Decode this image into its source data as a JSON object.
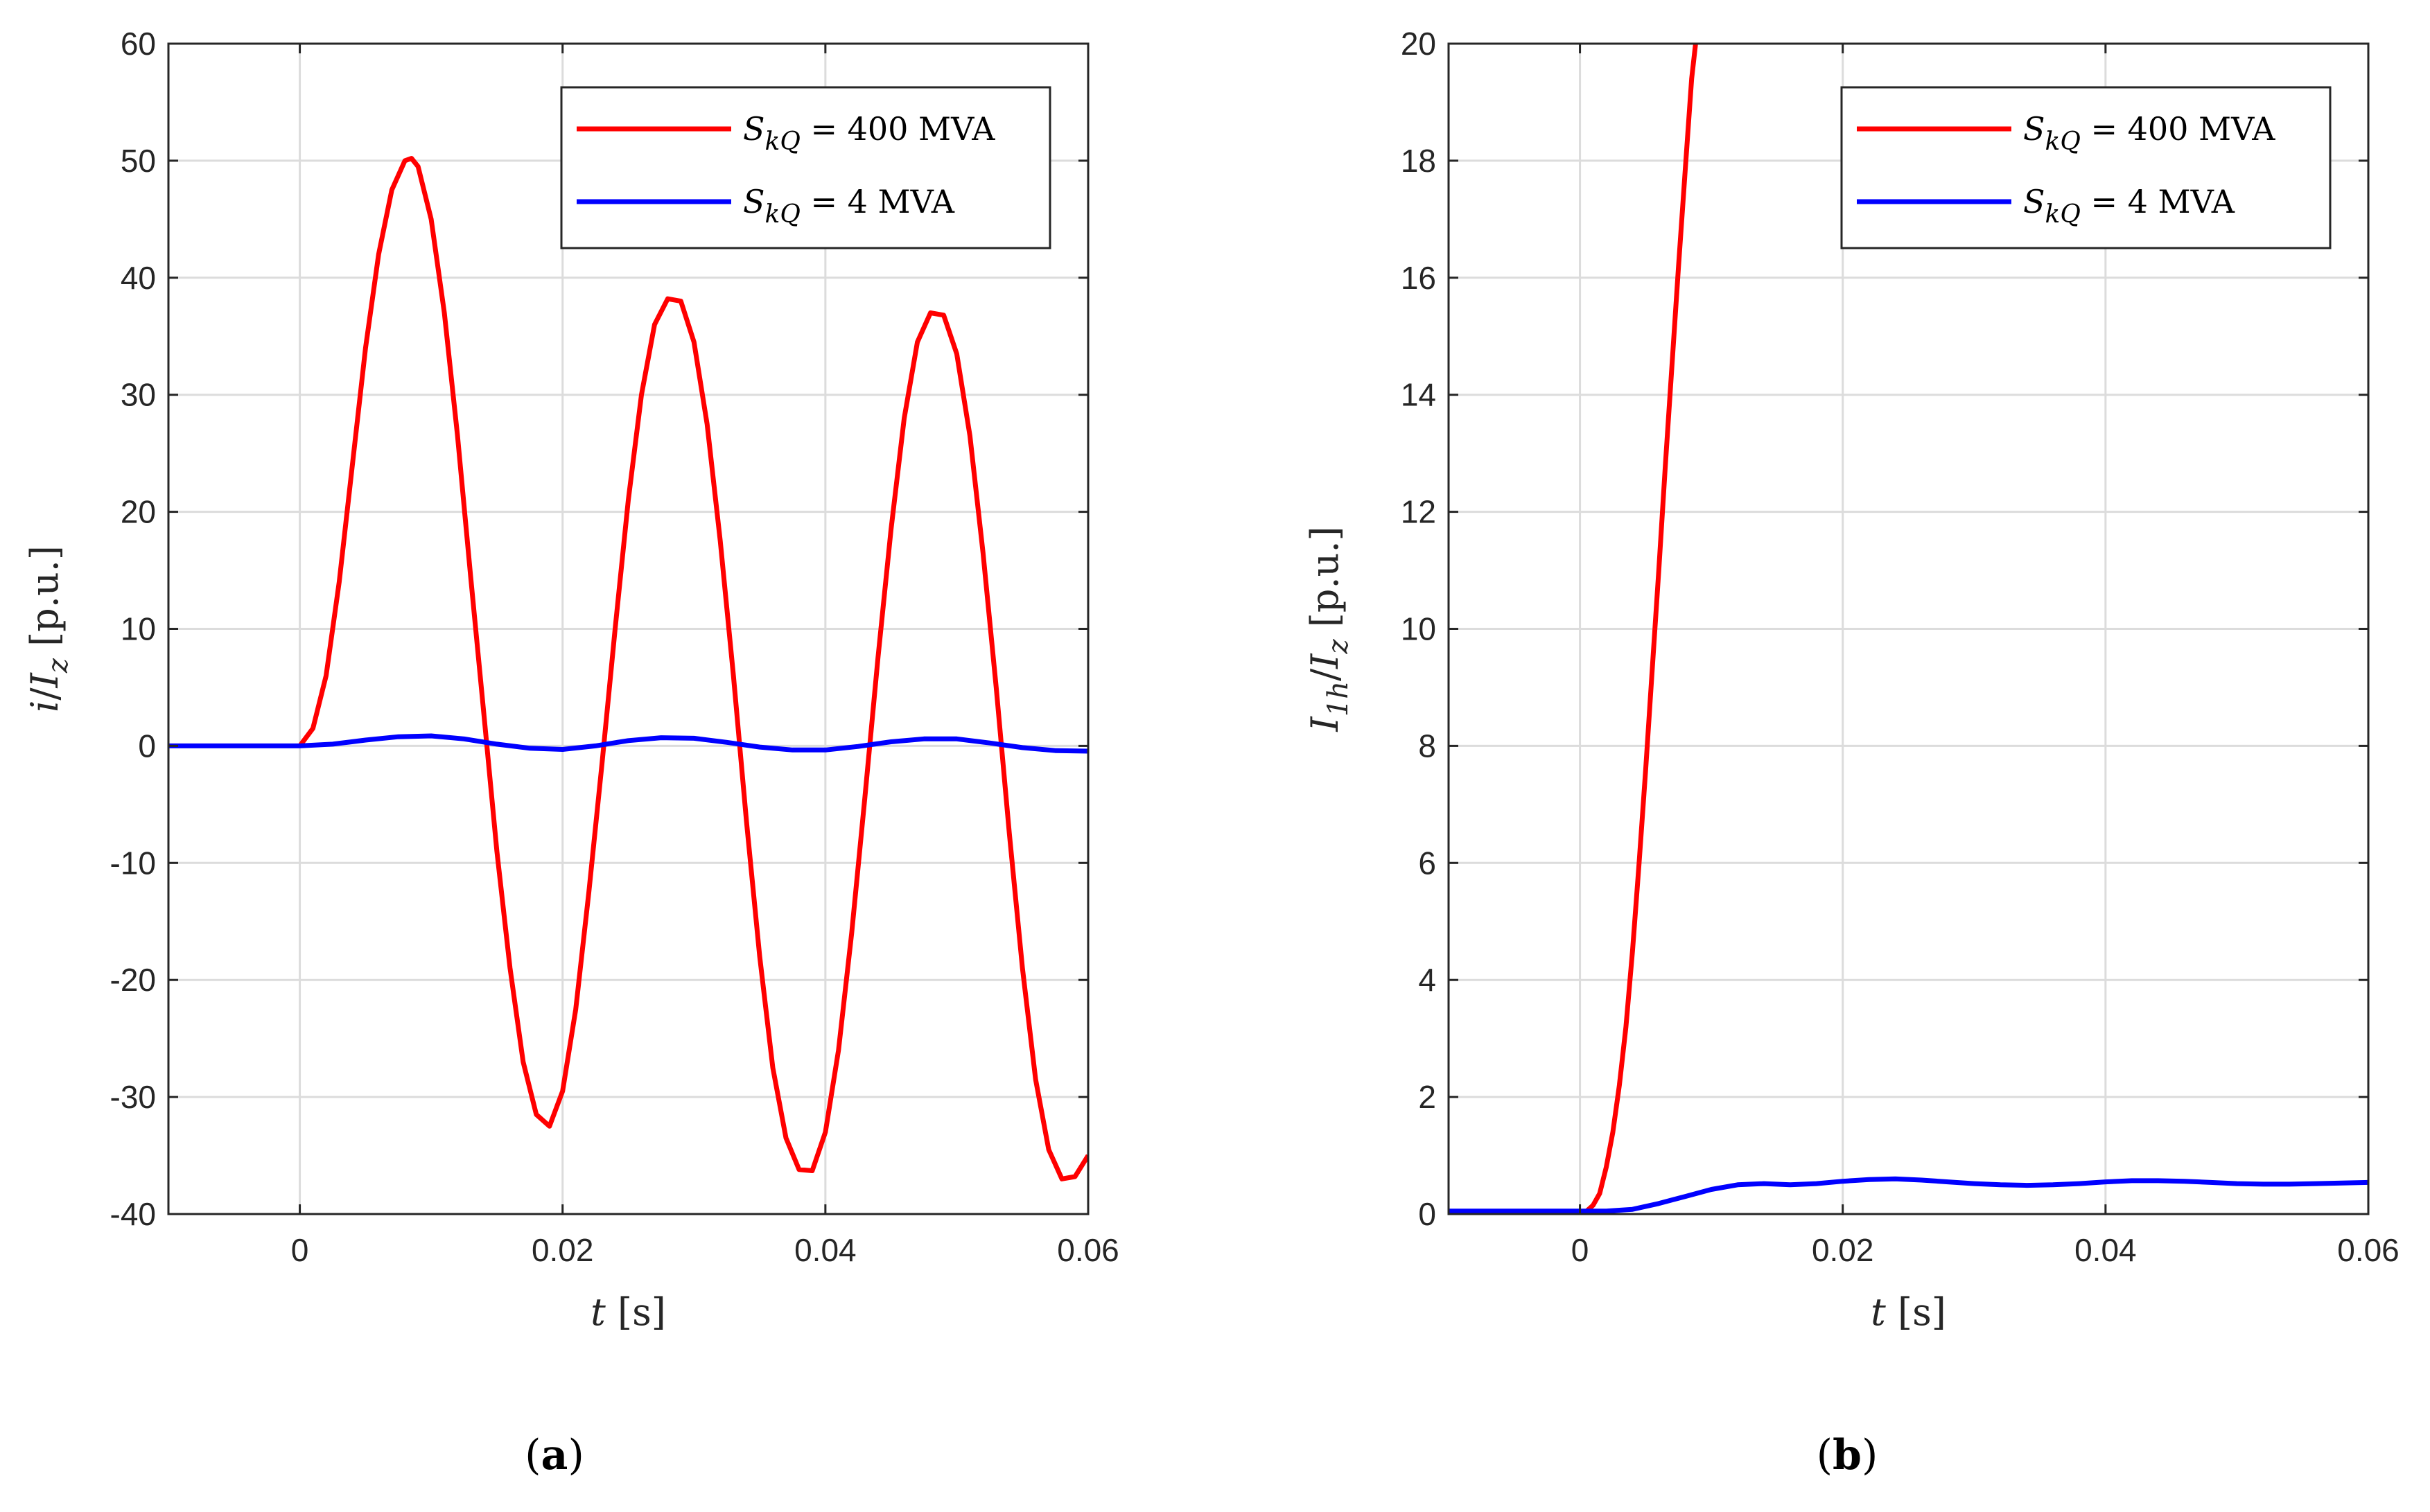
{
  "chart_data": [
    {
      "type": "line",
      "panel_label": "(a)",
      "panel_letter": "a",
      "xlabel_var": "t",
      "xlabel_unit": "[s]",
      "ylabel_a": "i",
      "ylabel_b": "I",
      "ylabel_b_sub": "z",
      "ylabel_unit": "[p.u.]",
      "xlim": [
        -0.01,
        0.06
      ],
      "ylim": [
        -40,
        60
      ],
      "xticks": [
        0,
        0.02,
        0.04,
        0.06
      ],
      "xtick_labels": [
        "0",
        "0.02",
        "0.04",
        "0.06"
      ],
      "yticks": [
        -40,
        -30,
        -20,
        -10,
        0,
        10,
        20,
        30,
        40,
        50,
        60
      ],
      "ytick_labels": [
        "-40",
        "-30",
        "-20",
        "-10",
        "0",
        "10",
        "20",
        "30",
        "40",
        "50",
        "60"
      ],
      "grid": true,
      "legend_position": "top-right",
      "series": [
        {
          "name": "S_kQ = 400 MVA",
          "legend_sym": "S",
          "legend_sub": "kQ",
          "legend_val": "= 400 MVA",
          "color": "#ff0000",
          "x": [
            0,
            0.001,
            0.002,
            0.003,
            0.004,
            0.005,
            0.006,
            0.007,
            0.008,
            0.0085,
            0.009,
            0.01,
            0.011,
            0.012,
            0.013,
            0.014,
            0.015,
            0.016,
            0.017,
            0.018,
            0.019,
            0.02,
            0.021,
            0.022,
            0.023,
            0.024,
            0.025,
            0.026,
            0.027,
            0.028,
            0.029,
            0.03,
            0.031,
            0.032,
            0.033,
            0.034,
            0.035,
            0.036,
            0.037,
            0.038,
            0.039,
            0.04,
            0.041,
            0.042,
            0.043,
            0.044,
            0.045,
            0.046,
            0.047,
            0.048,
            0.049,
            0.05,
            0.051,
            0.052,
            0.053,
            0.054,
            0.055,
            0.056,
            0.057,
            0.058,
            0.059,
            0.06
          ],
          "y": [
            0,
            1.5,
            6,
            14,
            24,
            34,
            42,
            47.5,
            50,
            50.2,
            49.5,
            45,
            37,
            26.5,
            14.5,
            2.8,
            -9,
            -19,
            -27,
            -31.5,
            -32.5,
            -29.5,
            -22.5,
            -12.5,
            -1.5,
            10,
            21,
            30,
            36,
            38.2,
            38,
            34.5,
            27.5,
            17.5,
            6,
            -6.5,
            -18,
            -27.5,
            -33.5,
            -36.2,
            -36.3,
            -33,
            -26,
            -16,
            -4.5,
            7.5,
            18.5,
            28,
            34.5,
            37,
            36.8,
            33.5,
            26.5,
            16.5,
            5,
            -7.5,
            -19,
            -28.5,
            -34.5,
            -37,
            -36.8,
            -35
          ]
        },
        {
          "name": "S_kQ = 4 MVA",
          "legend_sym": "S",
          "legend_sub": "kQ",
          "legend_val": "= 4 MVA",
          "color": "#0000ff",
          "x": [
            -0.01,
            0,
            0.0025,
            0.005,
            0.0075,
            0.01,
            0.0125,
            0.015,
            0.0175,
            0.02,
            0.0225,
            0.025,
            0.0275,
            0.03,
            0.0325,
            0.035,
            0.0375,
            0.04,
            0.0425,
            0.045,
            0.0475,
            0.05,
            0.0525,
            0.055,
            0.0575,
            0.06
          ],
          "y": [
            0,
            0,
            0.15,
            0.5,
            0.78,
            0.85,
            0.6,
            0.15,
            -0.2,
            -0.3,
            0,
            0.45,
            0.7,
            0.65,
            0.3,
            -0.1,
            -0.35,
            -0.35,
            -0.05,
            0.35,
            0.6,
            0.6,
            0.25,
            -0.15,
            -0.4,
            -0.45
          ]
        }
      ]
    },
    {
      "type": "line",
      "panel_label": "(b)",
      "panel_letter": "b",
      "xlabel_var": "t",
      "xlabel_unit": "[s]",
      "ylabel_a": "I",
      "ylabel_a_sub": "1h",
      "ylabel_b": "I",
      "ylabel_b_sub": "z",
      "ylabel_unit": "[p.u.]",
      "xlim": [
        -0.01,
        0.06
      ],
      "ylim": [
        0,
        20
      ],
      "xticks": [
        0,
        0.02,
        0.04,
        0.06
      ],
      "xtick_labels": [
        "0",
        "0.02",
        "0.04",
        "0.06"
      ],
      "yticks": [
        0,
        2,
        4,
        6,
        8,
        10,
        12,
        14,
        16,
        18,
        20
      ],
      "ytick_labels": [
        "0",
        "2",
        "4",
        "6",
        "8",
        "10",
        "12",
        "14",
        "16",
        "18",
        "20"
      ],
      "grid": true,
      "legend_position": "top-right",
      "series": [
        {
          "name": "S_kQ = 400 MVA",
          "legend_sym": "S",
          "legend_sub": "kQ",
          "legend_val": "= 400 MVA",
          "color": "#ff0000",
          "x": [
            0,
            0.0005,
            0.001,
            0.0015,
            0.002,
            0.0025,
            0.003,
            0.0035,
            0.004,
            0.0045,
            0.005,
            0.0055,
            0.006,
            0.0065,
            0.007,
            0.0075,
            0.008,
            0.0085,
            0.0088
          ],
          "y": [
            0,
            0.05,
            0.15,
            0.35,
            0.8,
            1.4,
            2.2,
            3.2,
            4.5,
            6,
            7.6,
            9.3,
            11,
            12.8,
            14.5,
            16.2,
            17.8,
            19.4,
            20
          ]
        },
        {
          "name": "S_kQ = 4 MVA",
          "legend_sym": "S",
          "legend_sub": "kQ",
          "legend_val": "= 4 MVA",
          "color": "#0000ff",
          "x": [
            -0.01,
            0,
            0.002,
            0.004,
            0.006,
            0.008,
            0.01,
            0.012,
            0.014,
            0.016,
            0.018,
            0.02,
            0.022,
            0.024,
            0.026,
            0.028,
            0.03,
            0.032,
            0.034,
            0.036,
            0.038,
            0.04,
            0.042,
            0.044,
            0.046,
            0.048,
            0.05,
            0.052,
            0.054,
            0.056,
            0.058,
            0.06
          ],
          "y": [
            0.05,
            0.05,
            0.05,
            0.08,
            0.18,
            0.3,
            0.42,
            0.5,
            0.52,
            0.5,
            0.52,
            0.56,
            0.59,
            0.6,
            0.58,
            0.55,
            0.52,
            0.5,
            0.49,
            0.5,
            0.52,
            0.55,
            0.57,
            0.57,
            0.56,
            0.54,
            0.52,
            0.51,
            0.51,
            0.52,
            0.53,
            0.54
          ]
        }
      ]
    }
  ]
}
